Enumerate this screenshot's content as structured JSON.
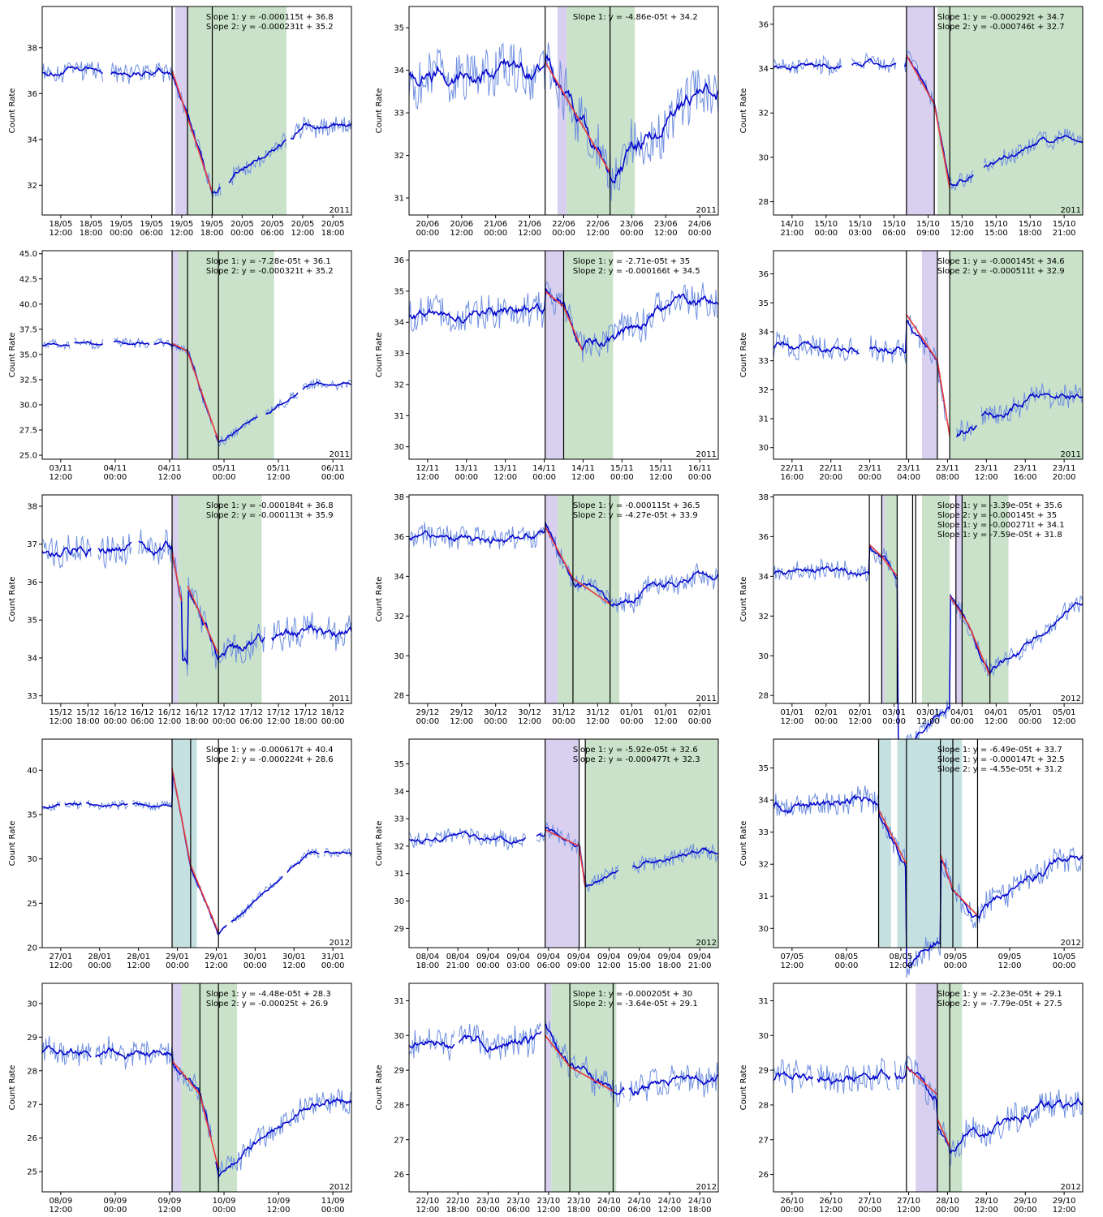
{
  "ylabel": "Count Rate",
  "colors": {
    "raw": "#7090e0",
    "smooth": "#0000cc",
    "fit": "#e8393a",
    "purple_band": "#d9cfef",
    "green_band": "#c9e2c9",
    "teal_band": "#c5e0e0",
    "vline": "#000000"
  },
  "chart_data": [
    {
      "type": "line",
      "year": "2011",
      "ylim": [
        30.7,
        39.8
      ],
      "yticks": [
        32,
        34,
        36,
        38
      ],
      "xticks": [
        "18/05\n12:00",
        "18/05\n18:00",
        "19/05\n00:00",
        "19/05\n06:00",
        "19/05\n12:00",
        "19/05\n18:00",
        "20/05\n00:00",
        "20/05\n06:00",
        "20/05\n12:00",
        "20/05\n18:00"
      ],
      "slopes": [
        "Slope 1: y = -0.000115t + 36.8",
        "Slope 2: y = -0.000231t + 35.2"
      ],
      "base": 37.0,
      "drop": 31.7,
      "recover": 34.5,
      "noise": 0.35,
      "gaps": [
        [
          0.2,
          0.22
        ],
        [
          0.58,
          0.6
        ],
        [
          0.79,
          0.8
        ]
      ],
      "segments": [
        [
          0.42,
          0.55,
          37.0,
          31.7
        ]
      ],
      "vlines": [
        0.42,
        0.47,
        0.55
      ],
      "bands": [
        [
          "purple",
          0.43,
          0.47
        ],
        [
          "green",
          0.47,
          0.79
        ]
      ]
    },
    {
      "type": "line",
      "year": "2011",
      "ylim": [
        30.6,
        35.5
      ],
      "yticks": [
        31,
        32,
        33,
        34,
        35
      ],
      "xticks": [
        "20/06\n00:00",
        "20/06\n12:00",
        "21/06\n00:00",
        "21/06\n12:00",
        "22/06\n00:00",
        "22/06\n12:00",
        "23/06\n00:00",
        "23/06\n12:00",
        "24/06\n00:00"
      ],
      "slopes": [
        "Slope 1: y = -4.86e-05t + 34.2"
      ],
      "base": 34.0,
      "drop": 31.6,
      "recover": 33.5,
      "noise": 0.5,
      "gaps": [],
      "segments": [
        [
          0.44,
          0.65,
          34.2,
          31.6
        ]
      ],
      "vlines": [
        0.44,
        0.65
      ],
      "bands": [
        [
          "purple",
          0.48,
          0.51
        ],
        [
          "green",
          0.51,
          0.73
        ]
      ]
    },
    {
      "type": "line",
      "year": "2011",
      "ylim": [
        27.4,
        36.8
      ],
      "yticks": [
        28,
        30,
        32,
        34,
        36
      ],
      "xticks": [
        "14/10\n21:00",
        "15/10\n00:00",
        "15/10\n03:00",
        "15/10\n06:00",
        "15/10\n09:00",
        "15/10\n12:00",
        "15/10\n15:00",
        "15/10\n18:00",
        "15/10\n21:00"
      ],
      "slopes": [
        "Slope 1: y = -0.000292t + 34.7",
        "Slope 2: y = -0.000746t + 32.7"
      ],
      "base": 34.2,
      "drop": 28.6,
      "recover": 30.8,
      "noise": 0.3,
      "gaps": [
        [
          0.22,
          0.25
        ],
        [
          0.4,
          0.42
        ],
        [
          0.65,
          0.68
        ]
      ],
      "segments": [
        [
          0.43,
          0.52,
          34.6,
          32.4
        ],
        [
          0.52,
          0.57,
          32.4,
          28.6
        ]
      ],
      "vlines": [
        0.43,
        0.52,
        0.57
      ],
      "bands": [
        [
          "purple",
          0.43,
          0.52
        ],
        [
          "green",
          0.53,
          1.0
        ]
      ]
    },
    {
      "type": "line",
      "year": "2011",
      "ylim": [
        24.6,
        45.3
      ],
      "yticks": [
        25.0,
        27.5,
        30.0,
        32.5,
        35.0,
        37.5,
        40.0,
        42.5,
        45.0
      ],
      "xticks": [
        "03/11\n12:00",
        "04/11\n00:00",
        "04/11\n12:00",
        "05/11\n00:00",
        "05/11\n12:00",
        "06/11\n00:00"
      ],
      "slopes": [
        "Slope 1: y = -7.28e-05t + 36.1",
        "Slope 2: y = -0.000321t + 35.2"
      ],
      "base": 36.0,
      "drop": 26.4,
      "recover": 32.0,
      "noise": 0.4,
      "gaps": [
        [
          0.09,
          0.1
        ],
        [
          0.2,
          0.23
        ],
        [
          0.35,
          0.36
        ],
        [
          0.55,
          0.56
        ],
        [
          0.7,
          0.72
        ],
        [
          0.83,
          0.84
        ]
      ],
      "segments": [
        [
          0.42,
          0.47,
          36.1,
          35.3
        ],
        [
          0.47,
          0.57,
          35.3,
          26.4
        ]
      ],
      "vlines": [
        0.42,
        0.47,
        0.57
      ],
      "bands": [
        [
          "purple",
          0.42,
          0.44
        ],
        [
          "green",
          0.44,
          0.75
        ]
      ]
    },
    {
      "type": "line",
      "year": "2011",
      "ylim": [
        29.6,
        36.3
      ],
      "yticks": [
        30,
        31,
        32,
        33,
        34,
        35,
        36
      ],
      "xticks": [
        "12/11\n12:00",
        "13/11\n00:00",
        "13/11\n12:00",
        "14/11\n00:00",
        "14/11\n12:00",
        "15/11\n00:00",
        "15/11\n12:00",
        "16/11\n00:00"
      ],
      "slopes": [
        "Slope 1: y = -2.71e-05t + 35",
        "Slope 2: y = -0.000166t + 34.5"
      ],
      "base": 34.3,
      "drop": 33.1,
      "recover": 34.5,
      "noise": 0.45,
      "gaps": [],
      "segments": [
        [
          0.44,
          0.5,
          35.0,
          34.5
        ],
        [
          0.5,
          0.56,
          34.5,
          33.1
        ]
      ],
      "vlines": [
        0.44,
        0.5
      ],
      "bands": [
        [
          "purple",
          0.44,
          0.5
        ],
        [
          "green",
          0.5,
          0.66
        ]
      ]
    },
    {
      "type": "line",
      "year": "2011",
      "ylim": [
        29.6,
        36.8
      ],
      "yticks": [
        30,
        31,
        32,
        33,
        34,
        35,
        36
      ],
      "xticks": [
        "22/11\n16:00",
        "22/11\n20:00",
        "23/11\n00:00",
        "23/11\n04:00",
        "23/11\n08:00",
        "23/11\n12:00",
        "23/11\n16:00",
        "23/11\n20:00"
      ],
      "slopes": [
        "Slope 1: y = -0.000145t + 34.6",
        "Slope 2: y = -0.000511t + 32.9"
      ],
      "base": 33.5,
      "drop": 30.4,
      "recover": 31.8,
      "noise": 0.35,
      "gaps": [
        [
          0.28,
          0.31
        ],
        [
          0.56,
          0.59
        ],
        [
          0.66,
          0.67
        ]
      ],
      "segments": [
        [
          0.43,
          0.53,
          34.6,
          33.0
        ],
        [
          0.53,
          0.57,
          33.0,
          30.4
        ]
      ],
      "vlines": [
        0.43,
        0.53,
        0.57
      ],
      "bands": [
        [
          "purple",
          0.48,
          0.53
        ],
        [
          "green",
          0.57,
          1.0
        ]
      ]
    },
    {
      "type": "line",
      "year": "2011",
      "ylim": [
        32.8,
        38.3
      ],
      "yticks": [
        33,
        34,
        35,
        36,
        37,
        38
      ],
      "xticks": [
        "15/12\n12:00",
        "15/12\n18:00",
        "16/12\n00:00",
        "16/12\n06:00",
        "16/12\n12:00",
        "16/12\n18:00",
        "17/12\n00:00",
        "17/12\n06:00",
        "17/12\n12:00",
        "17/12\n18:00",
        "18/12\n00:00"
      ],
      "slopes": [
        "Slope 1: y = -0.000184t + 36.8",
        "Slope 2: y = -0.000113t + 35.9"
      ],
      "base": 36.9,
      "drop": 34.1,
      "recover": 34.6,
      "noise": 0.35,
      "gaps": [
        [
          0.16,
          0.18
        ],
        [
          0.29,
          0.31
        ],
        [
          0.72,
          0.74
        ]
      ],
      "segments": [
        [
          0.42,
          0.45,
          36.8,
          35.5
        ],
        [
          0.47,
          0.57,
          35.9,
          34.1
        ]
      ],
      "vlines": [
        0.42,
        0.57
      ],
      "bands": [
        [
          "purple",
          0.42,
          0.44
        ],
        [
          "green",
          0.44,
          0.71
        ]
      ]
    },
    {
      "type": "line",
      "year": "2011",
      "ylim": [
        27.6,
        38.1
      ],
      "yticks": [
        28,
        30,
        32,
        34,
        36,
        38
      ],
      "xticks": [
        "29/12\n00:00",
        "29/12\n12:00",
        "30/12\n00:00",
        "30/12\n12:00",
        "31/12\n00:00",
        "31/12\n12:00",
        "01/01\n00:00",
        "01/01\n12:00",
        "02/01\n00:00"
      ],
      "slopes": [
        "Slope 1: y = -0.000115t + 36.5",
        "Slope 2: y = -4.27e-05t + 33.9"
      ],
      "base": 36.0,
      "drop": 32.6,
      "recover": 34.2,
      "noise": 0.45,
      "gaps": [],
      "segments": [
        [
          0.44,
          0.53,
          36.5,
          33.9
        ],
        [
          0.53,
          0.65,
          33.9,
          32.6
        ]
      ],
      "vlines": [
        0.44,
        0.53,
        0.65
      ],
      "bands": [
        [
          "purple",
          0.44,
          0.48
        ],
        [
          "green",
          0.48,
          0.68
        ]
      ]
    },
    {
      "type": "line",
      "year": "2012",
      "ylim": [
        27.6,
        38.1
      ],
      "yticks": [
        28,
        30,
        32,
        34,
        36,
        38
      ],
      "xticks": [
        "01/01\n12:00",
        "02/01\n00:00",
        "02/01\n12:00",
        "03/01\n00:00",
        "03/01\n12:00",
        "04/01\n00:00",
        "04/01\n12:00",
        "05/01\n00:00",
        "05/01\n12:00"
      ],
      "slopes": [
        "Slope 1: y = -3.39e-05t + 35.6",
        "Slope 2: y = -0.000145t + 35",
        "Slope 1: y = -0.000271t + 34.1",
        "Slope 1: y = -7.59e-05t + 31.8"
      ],
      "base": 34.2,
      "drop": 29.0,
      "recover": 32.8,
      "noise": 0.4,
      "gaps": [],
      "segments": [
        [
          0.31,
          0.35,
          35.6,
          35.0
        ],
        [
          0.35,
          0.4,
          35.0,
          34.0
        ],
        [
          0.57,
          0.63,
          33.0,
          31.6
        ],
        [
          0.63,
          0.7,
          31.6,
          29.0
        ]
      ],
      "vlines": [
        0.31,
        0.35,
        0.4,
        0.45,
        0.46,
        0.59,
        0.61,
        0.7
      ],
      "bands": [
        [
          "purple",
          0.35,
          0.36
        ],
        [
          "green",
          0.36,
          0.4
        ],
        [
          "green",
          0.48,
          0.57
        ],
        [
          "purple",
          0.59,
          0.61
        ],
        [
          "green",
          0.61,
          0.76
        ]
      ]
    },
    {
      "type": "line",
      "year": "2012",
      "ylim": [
        20.0,
        43.5
      ],
      "yticks": [
        20,
        25,
        30,
        35,
        40
      ],
      "xticks": [
        "27/01\n12:00",
        "28/01\n00:00",
        "28/01\n12:00",
        "29/01\n00:00",
        "29/01\n12:00",
        "30/01\n00:00",
        "30/01\n12:00",
        "31/01\n00:00"
      ],
      "slopes": [
        "Slope 1: y = -0.000617t + 40.4",
        "Slope 2: y = -0.000224t + 28.6"
      ],
      "base": 36.0,
      "drop": 21.7,
      "recover": 30.6,
      "noise": 0.4,
      "gaps": [
        [
          0.06,
          0.07
        ],
        [
          0.13,
          0.14
        ],
        [
          0.28,
          0.29
        ],
        [
          0.6,
          0.61
        ],
        [
          0.78,
          0.79
        ],
        [
          0.9,
          0.91
        ]
      ],
      "segments": [
        [
          0.42,
          0.48,
          40.2,
          29.3
        ],
        [
          0.48,
          0.57,
          29.3,
          21.7
        ]
      ],
      "vlines": [
        0.42,
        0.48,
        0.57
      ],
      "bands": [
        [
          "teal",
          0.42,
          0.5
        ]
      ]
    },
    {
      "type": "line",
      "year": "2012",
      "ylim": [
        28.3,
        35.9
      ],
      "yticks": [
        29,
        30,
        31,
        32,
        33,
        34,
        35
      ],
      "xticks": [
        "08/04\n18:00",
        "08/04\n21:00",
        "09/04\n00:00",
        "09/04\n03:00",
        "09/04\n06:00",
        "09/04\n09:00",
        "09/04\n12:00",
        "09/04\n15:00",
        "09/04\n18:00",
        "09/04\n21:00"
      ],
      "slopes": [
        "Slope 1: y = -5.92e-05t + 32.6",
        "Slope 2: y = -0.000477t + 32.3"
      ],
      "base": 32.3,
      "drop": 30.5,
      "recover": 31.8,
      "noise": 0.25,
      "gaps": [
        [
          0.38,
          0.41
        ],
        [
          0.68,
          0.72
        ]
      ],
      "segments": [
        [
          0.44,
          0.55,
          32.6,
          32.0
        ],
        [
          0.55,
          0.57,
          32.0,
          30.5
        ]
      ],
      "vlines": [
        0.44,
        0.55,
        0.57
      ],
      "bands": [
        [
          "purple",
          0.44,
          0.55
        ],
        [
          "green",
          0.57,
          1.0
        ]
      ]
    },
    {
      "type": "line",
      "year": "2012",
      "ylim": [
        29.4,
        35.9
      ],
      "yticks": [
        30,
        31,
        32,
        33,
        34,
        35
      ],
      "xticks": [
        "07/05\n12:00",
        "08/05\n00:00",
        "08/05\n12:00",
        "09/05\n00:00",
        "09/05\n12:00",
        "10/05\n00:00"
      ],
      "slopes": [
        "Slope 1: y = -6.49e-05t + 33.7",
        "Slope 1: y = -0.000147t + 32.5",
        "Slope 2: y = -4.55e-05t + 31.2"
      ],
      "base": 33.9,
      "drop": 30.4,
      "recover": 32.3,
      "noise": 0.35,
      "gaps": [],
      "segments": [
        [
          0.34,
          0.43,
          33.7,
          32.0
        ],
        [
          0.54,
          0.58,
          32.3,
          31.2
        ],
        [
          0.58,
          0.66,
          31.2,
          30.4
        ]
      ],
      "vlines": [
        0.34,
        0.43,
        0.54,
        0.58,
        0.66
      ],
      "bands": [
        [
          "teal",
          0.34,
          0.38
        ],
        [
          "teal",
          0.4,
          0.61
        ]
      ]
    },
    {
      "type": "line",
      "year": "2012",
      "ylim": [
        24.4,
        30.6
      ],
      "yticks": [
        25,
        26,
        27,
        28,
        29,
        30
      ],
      "xticks": [
        "08/09\n12:00",
        "09/09\n00:00",
        "09/09\n12:00",
        "10/09\n00:00",
        "10/09\n12:00",
        "11/09\n00:00"
      ],
      "slopes": [
        "Slope 1: y = -4.48e-05t + 28.3",
        "Slope 2: y = -0.00025t + 26.9"
      ],
      "base": 28.6,
      "drop": 25.1,
      "recover": 27.1,
      "noise": 0.3,
      "gaps": [
        [
          0.16,
          0.17
        ],
        [
          0.55,
          0.56
        ]
      ],
      "segments": [
        [
          0.42,
          0.51,
          28.3,
          27.3
        ],
        [
          0.51,
          0.57,
          27.3,
          25.1
        ]
      ],
      "vlines": [
        0.42,
        0.51,
        0.57
      ],
      "bands": [
        [
          "purple",
          0.42,
          0.45
        ],
        [
          "green",
          0.45,
          0.63
        ]
      ]
    },
    {
      "type": "line",
      "year": "2012",
      "ylim": [
        25.5,
        31.5
      ],
      "yticks": [
        26,
        27,
        28,
        29,
        30,
        31
      ],
      "xticks": [
        "22/10\n12:00",
        "22/10\n18:00",
        "23/10\n00:00",
        "23/10\n06:00",
        "23/10\n12:00",
        "23/10\n18:00",
        "24/10\n00:00",
        "24/10\n06:00",
        "24/10\n12:00",
        "24/10\n18:00"
      ],
      "slopes": [
        "Slope 1: y = -0.000205t + 30",
        "Slope 2: y = -3.64e-05t + 29.1"
      ],
      "base": 29.8,
      "drop": 28.4,
      "recover": 28.7,
      "noise": 0.35,
      "gaps": [
        [
          0.15,
          0.16
        ],
        [
          0.43,
          0.44
        ],
        [
          0.7,
          0.71
        ]
      ],
      "segments": [
        [
          0.44,
          0.52,
          30.0,
          29.1
        ],
        [
          0.52,
          0.66,
          29.1,
          28.4
        ]
      ],
      "vlines": [
        0.44,
        0.52,
        0.66
      ],
      "bands": [
        [
          "purple",
          0.44,
          0.46
        ],
        [
          "green",
          0.46,
          0.67
        ]
      ]
    },
    {
      "type": "line",
      "year": "2012",
      "ylim": [
        25.5,
        31.5
      ],
      "yticks": [
        26,
        27,
        28,
        29,
        30,
        31
      ],
      "xticks": [
        "26/10\n00:00",
        "26/10\n12:00",
        "27/10\n00:00",
        "27/10\n12:00",
        "28/10\n00:00",
        "28/10\n12:00",
        "29/10\n00:00",
        "29/10\n12:00"
      ],
      "slopes": [
        "Slope 1: y = -2.23e-05t + 29.1",
        "Slope 2: y = -7.79e-05t + 27.5"
      ],
      "base": 28.8,
      "drop": 26.7,
      "recover": 28.0,
      "noise": 0.35,
      "gaps": [
        [
          0.13,
          0.14
        ],
        [
          0.38,
          0.39
        ]
      ],
      "segments": [
        [
          0.43,
          0.53,
          29.1,
          28.3
        ],
        [
          0.53,
          0.57,
          27.6,
          26.8
        ]
      ],
      "vlines": [
        0.43,
        0.53,
        0.57
      ],
      "bands": [
        [
          "purple",
          0.46,
          0.53
        ],
        [
          "green",
          0.53,
          0.61
        ]
      ]
    }
  ]
}
